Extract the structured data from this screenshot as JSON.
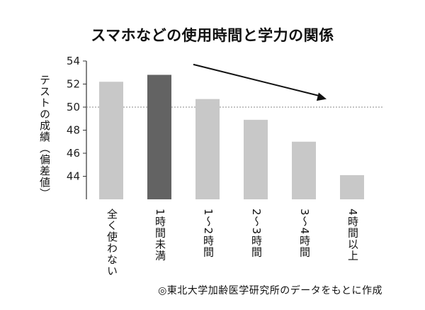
{
  "chart_data": {
    "type": "bar",
    "title": "スマホなどの使用時間と学力の関係",
    "ylabel": "テストの成績（偏差値）",
    "xlabel": "",
    "categories": [
      "全く使わない",
      "1時間未満",
      "1〜2時間",
      "2〜3時間",
      "3〜4時間",
      "4時間以上"
    ],
    "values": [
      52.2,
      52.8,
      50.7,
      48.9,
      47.0,
      44.1
    ],
    "ylim": [
      42,
      54
    ],
    "yticks": [
      44,
      46,
      48,
      50,
      52,
      54
    ],
    "reference_line": 50,
    "highlight_index": 1,
    "arrow": {
      "from_category": 1,
      "to_category": 4,
      "from_value": 53.7,
      "to_value": 50.7
    },
    "grid": false,
    "colors": {
      "bar": "#c8c8c8",
      "highlight": "#636363",
      "axis": "#333333",
      "reference": "#888888"
    }
  },
  "source": "◎東北大学加齢医学研究所のデータをもとに作成"
}
